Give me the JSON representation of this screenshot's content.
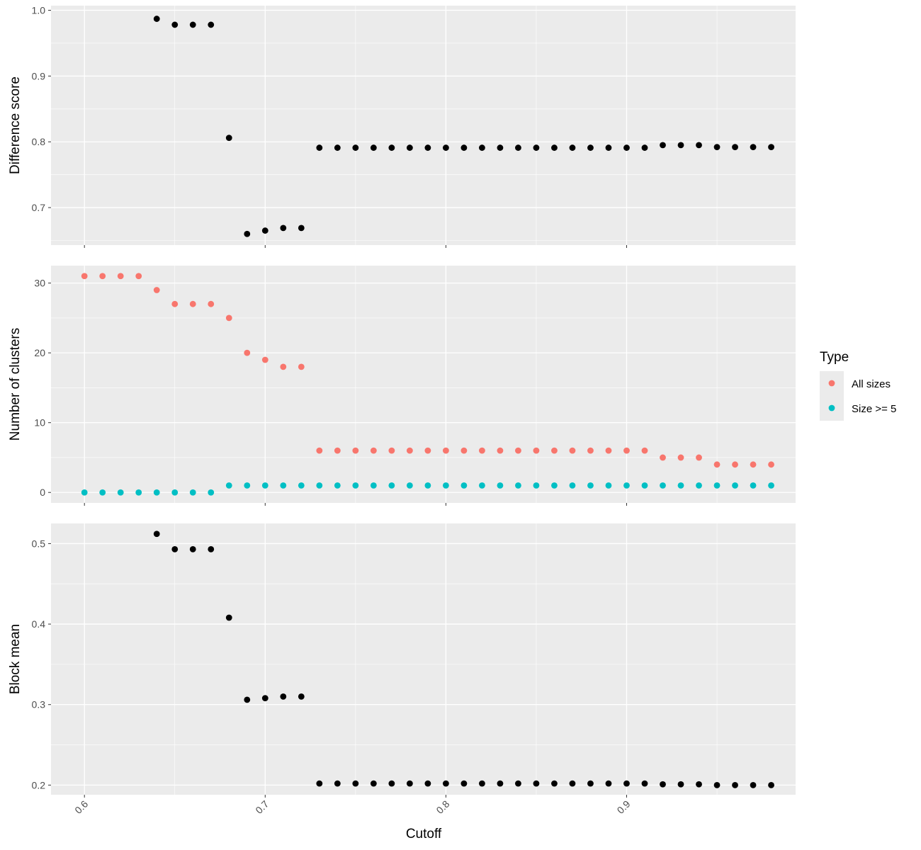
{
  "chart_data": {
    "type": "scatter",
    "xlabel": "Cutoff",
    "x_ticks": [
      0.6,
      0.7,
      0.8,
      0.9
    ],
    "x_tick_labels": [
      "0.6",
      "0.7",
      "0.8",
      "0.9"
    ],
    "xlim": [
      0.5815,
      0.9935
    ],
    "background": "#ebebeb",
    "grid": true,
    "grid_color": "#ffffff",
    "legend": {
      "title": "Type",
      "position": "right",
      "entries": [
        {
          "name": "All sizes",
          "color": "#f8766d"
        },
        {
          "name": "Size >= 5",
          "color": "#00bfc4"
        }
      ]
    },
    "panels": [
      {
        "ylabel": "Difference score",
        "ylim": [
          0.643,
          1.007
        ],
        "y_ticks": [
          0.7,
          0.8,
          0.9,
          1.0
        ],
        "y_tick_labels": [
          "0.7",
          "0.8",
          "0.9",
          "1.0"
        ],
        "series": [
          {
            "color": "#000000",
            "x": [
              0.64,
              0.65,
              0.66,
              0.67,
              0.68,
              0.69,
              0.7,
              0.71,
              0.72,
              0.73,
              0.74,
              0.75,
              0.76,
              0.77,
              0.78,
              0.79,
              0.8,
              0.81,
              0.82,
              0.83,
              0.84,
              0.85,
              0.86,
              0.87,
              0.88,
              0.89,
              0.9,
              0.91,
              0.92,
              0.93,
              0.94,
              0.95,
              0.96,
              0.97,
              0.98
            ],
            "y": [
              0.987,
              0.978,
              0.978,
              0.978,
              0.806,
              0.66,
              0.665,
              0.669,
              0.669,
              0.791,
              0.791,
              0.791,
              0.791,
              0.791,
              0.791,
              0.791,
              0.791,
              0.791,
              0.791,
              0.791,
              0.791,
              0.791,
              0.791,
              0.791,
              0.791,
              0.791,
              0.791,
              0.791,
              0.795,
              0.795,
              0.795,
              0.792,
              0.792,
              0.792,
              0.792
            ]
          }
        ]
      },
      {
        "ylabel": "Number of clusters",
        "ylim": [
          -1.5,
          32.5
        ],
        "y_ticks": [
          0,
          10,
          20,
          30
        ],
        "y_tick_labels": [
          "0",
          "10",
          "20",
          "30"
        ],
        "series": [
          {
            "name": "All sizes",
            "color": "#f8766d",
            "x": [
              0.6,
              0.61,
              0.62,
              0.63,
              0.64,
              0.65,
              0.66,
              0.67,
              0.68,
              0.69,
              0.7,
              0.71,
              0.72,
              0.73,
              0.74,
              0.75,
              0.76,
              0.77,
              0.78,
              0.79,
              0.8,
              0.81,
              0.82,
              0.83,
              0.84,
              0.85,
              0.86,
              0.87,
              0.88,
              0.89,
              0.9,
              0.91,
              0.92,
              0.93,
              0.94,
              0.95,
              0.96,
              0.97,
              0.98
            ],
            "y": [
              31,
              31,
              31,
              31,
              29,
              27,
              27,
              27,
              25,
              20,
              19,
              18,
              18,
              6,
              6,
              6,
              6,
              6,
              6,
              6,
              6,
              6,
              6,
              6,
              6,
              6,
              6,
              6,
              6,
              6,
              6,
              6,
              5,
              5,
              5,
              4,
              4,
              4,
              4
            ]
          },
          {
            "name": "Size >= 5",
            "color": "#00bfc4",
            "x": [
              0.6,
              0.61,
              0.62,
              0.63,
              0.64,
              0.65,
              0.66,
              0.67,
              0.68,
              0.69,
              0.7,
              0.71,
              0.72,
              0.73,
              0.74,
              0.75,
              0.76,
              0.77,
              0.78,
              0.79,
              0.8,
              0.81,
              0.82,
              0.83,
              0.84,
              0.85,
              0.86,
              0.87,
              0.88,
              0.89,
              0.9,
              0.91,
              0.92,
              0.93,
              0.94,
              0.95,
              0.96,
              0.97,
              0.98
            ],
            "y": [
              0,
              0,
              0,
              0,
              0,
              0,
              0,
              0,
              1,
              1,
              1,
              1,
              1,
              1,
              1,
              1,
              1,
              1,
              1,
              1,
              1,
              1,
              1,
              1,
              1,
              1,
              1,
              1,
              1,
              1,
              1,
              1,
              1,
              1,
              1,
              1,
              1,
              1,
              1
            ]
          }
        ]
      },
      {
        "ylabel": "Block mean",
        "ylim": [
          0.188,
          0.525
        ],
        "y_ticks": [
          0.2,
          0.3,
          0.4,
          0.5
        ],
        "y_tick_labels": [
          "0.2",
          "0.3",
          "0.4",
          "0.5"
        ],
        "series": [
          {
            "color": "#000000",
            "x": [
              0.64,
              0.65,
              0.66,
              0.67,
              0.68,
              0.69,
              0.7,
              0.71,
              0.72,
              0.73,
              0.74,
              0.75,
              0.76,
              0.77,
              0.78,
              0.79,
              0.8,
              0.81,
              0.82,
              0.83,
              0.84,
              0.85,
              0.86,
              0.87,
              0.88,
              0.89,
              0.9,
              0.91,
              0.92,
              0.93,
              0.94,
              0.95,
              0.96,
              0.97,
              0.98
            ],
            "y": [
              0.512,
              0.493,
              0.493,
              0.493,
              0.408,
              0.306,
              0.308,
              0.31,
              0.31,
              0.202,
              0.202,
              0.202,
              0.202,
              0.202,
              0.202,
              0.202,
              0.202,
              0.202,
              0.202,
              0.202,
              0.202,
              0.202,
              0.202,
              0.202,
              0.202,
              0.202,
              0.202,
              0.202,
              0.201,
              0.201,
              0.201,
              0.2,
              0.2,
              0.2,
              0.2
            ]
          }
        ]
      }
    ]
  }
}
